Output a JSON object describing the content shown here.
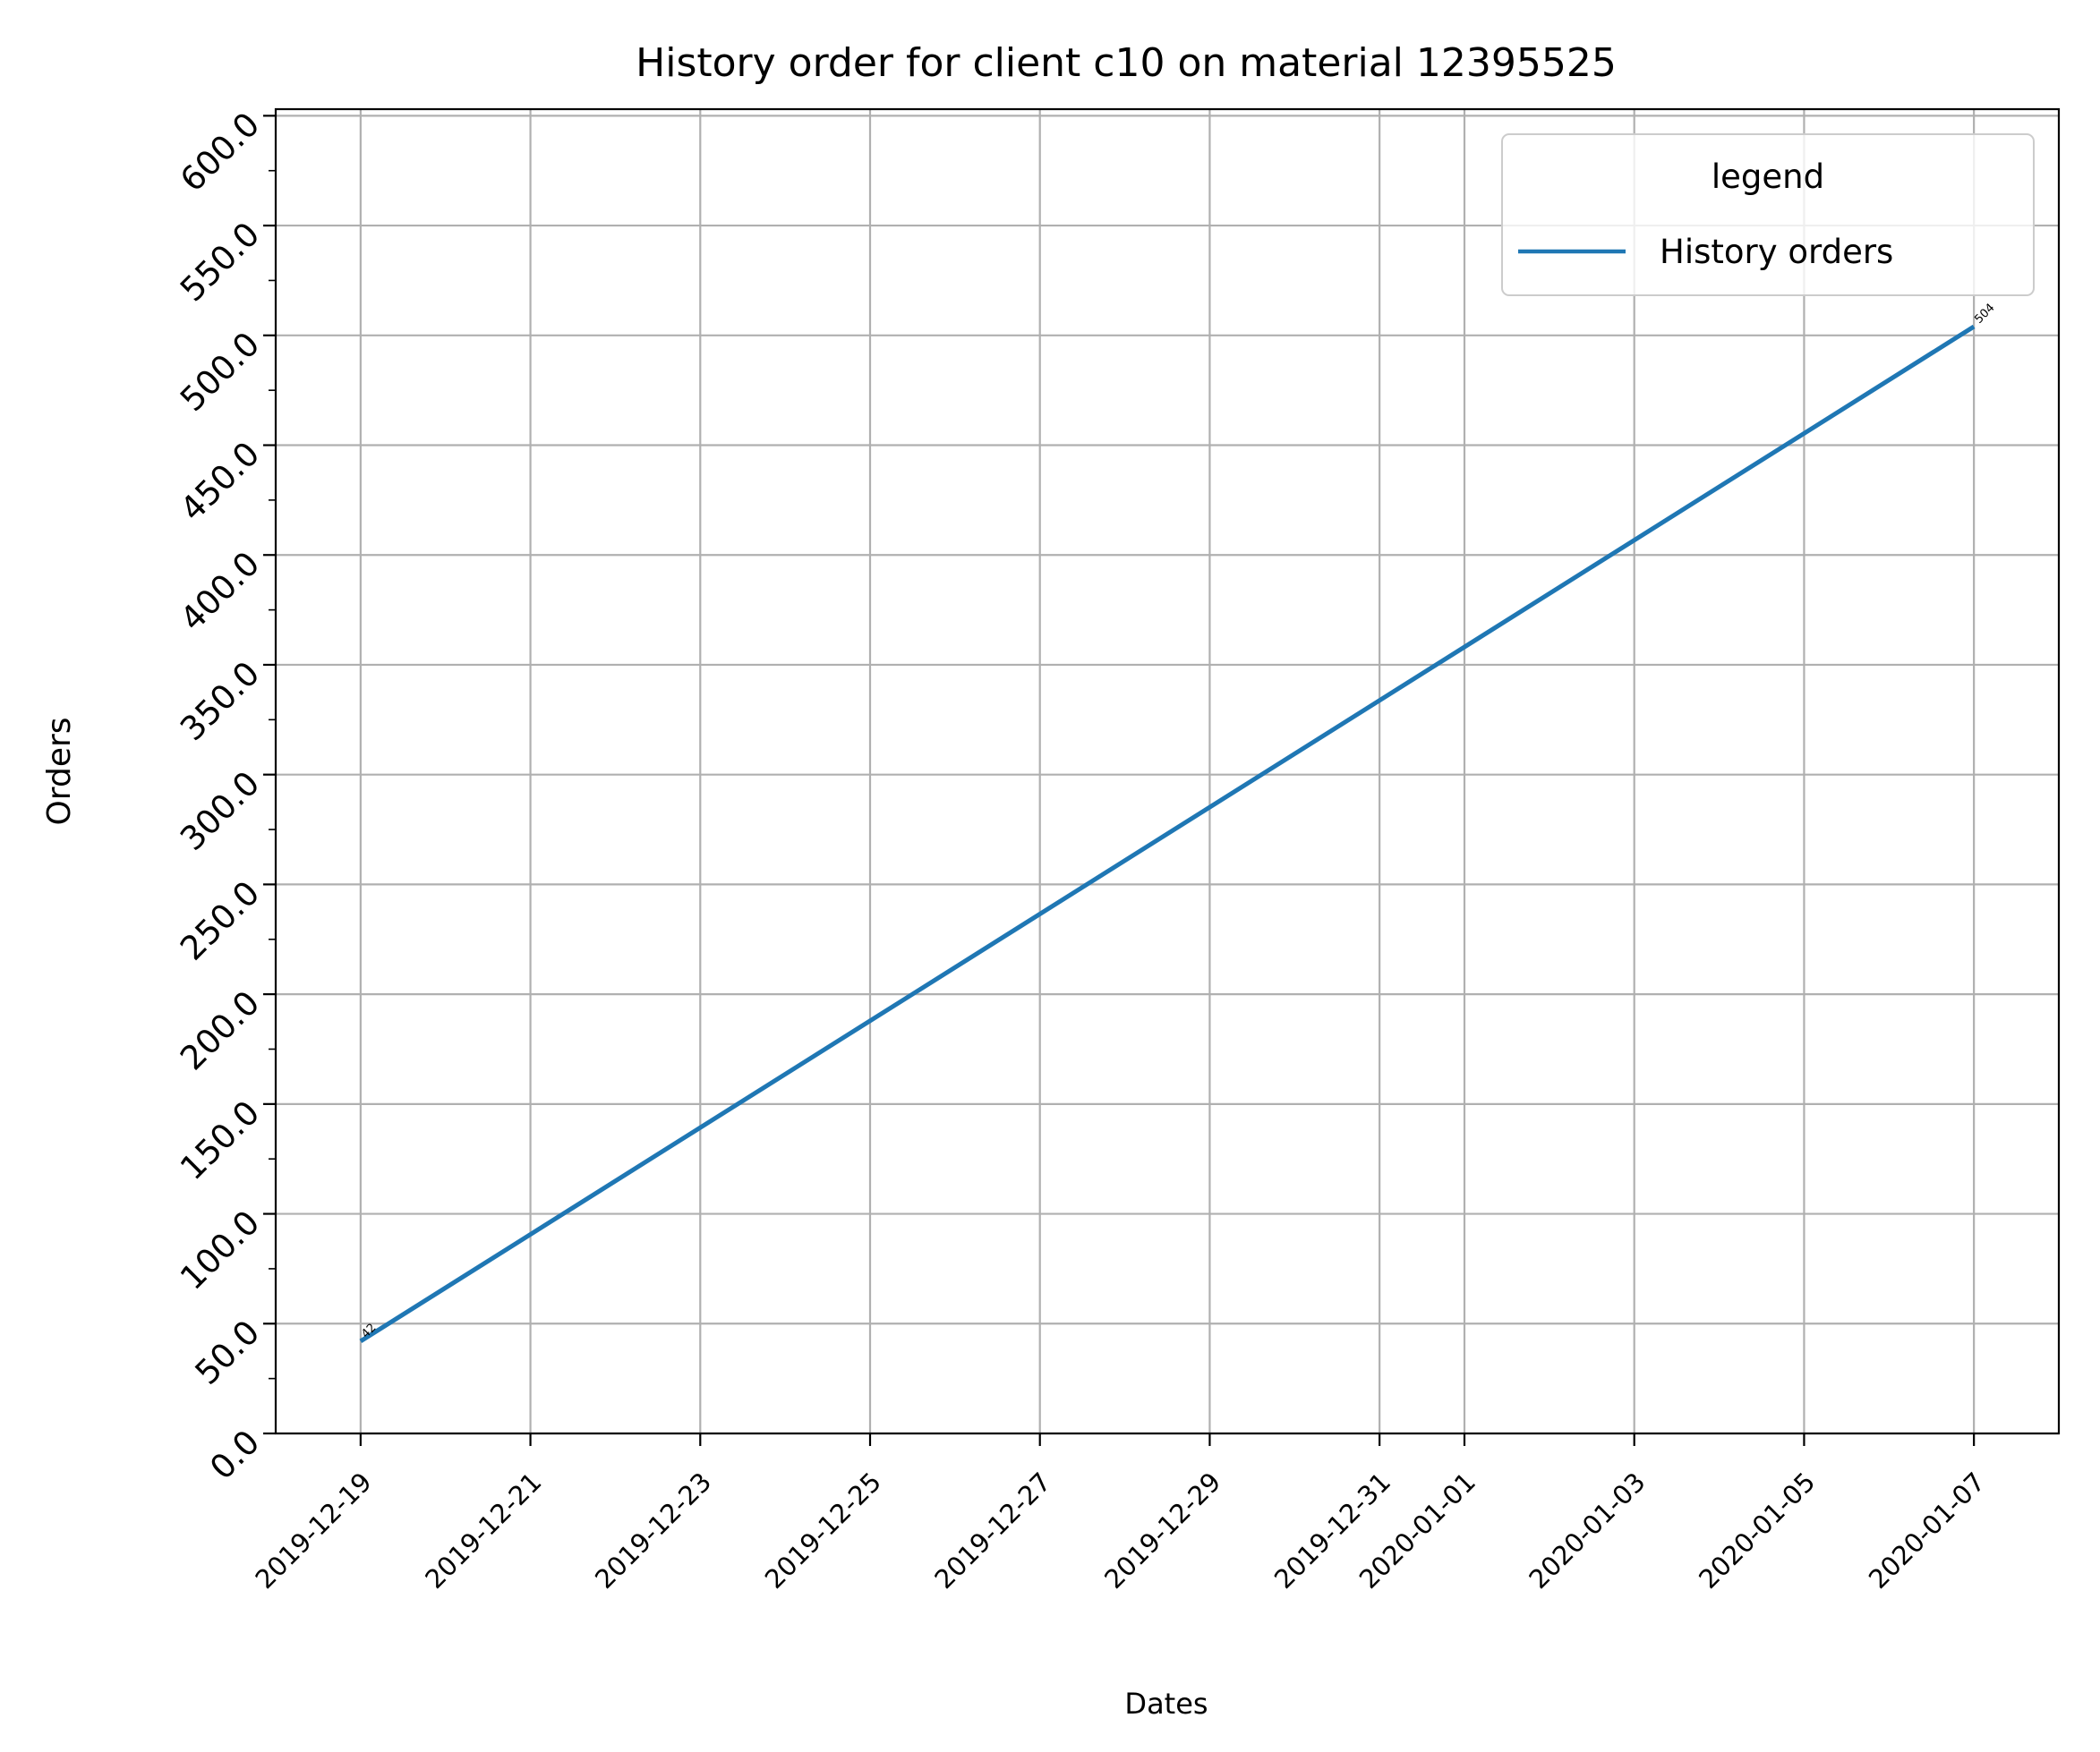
{
  "chart_data": {
    "type": "line",
    "title": "History order for client c10 on material 12395525",
    "xlabel": "Dates",
    "ylabel": "Orders",
    "x_type": "date",
    "xlim": [
      "2019-12-18",
      "2020-01-08"
    ],
    "ylim": [
      0,
      603
    ],
    "x_ticks": [
      "2019-12-19",
      "2019-12-21",
      "2019-12-23",
      "2019-12-25",
      "2019-12-27",
      "2019-12-29",
      "2019-12-31",
      "2020-01-01",
      "2020-01-03",
      "2020-01-05",
      "2020-01-07"
    ],
    "y_ticks": [
      "0.0",
      "50.0",
      "100.0",
      "150.0",
      "200.0",
      "250.0",
      "300.0",
      "350.0",
      "400.0",
      "450.0",
      "500.0",
      "550.0",
      "600.0"
    ],
    "y_minor_step": 25,
    "grid": true,
    "legend": {
      "title": "legend",
      "placement": "top-right"
    },
    "series": [
      {
        "name": "History orders",
        "color": "#1f77b4",
        "points": [
          {
            "x": "2019-12-19",
            "y": 42,
            "label": "42"
          },
          {
            "x": "2020-01-07",
            "y": 504,
            "label": "504"
          }
        ]
      }
    ]
  }
}
